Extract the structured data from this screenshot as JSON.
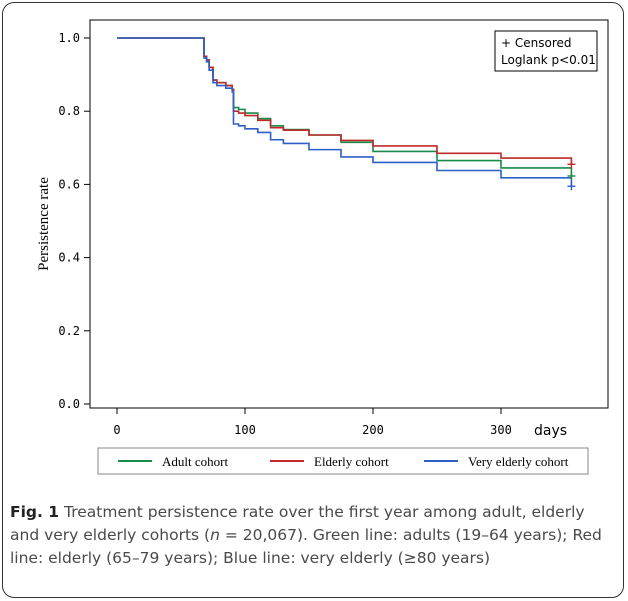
{
  "chart_data": {
    "type": "line",
    "step": true,
    "ylabel": "Persistence rate",
    "xlabel": "days",
    "xlim": [
      0,
      360
    ],
    "ylim": [
      0,
      1.0
    ],
    "x_ticks": [
      0,
      100,
      200,
      300
    ],
    "y_ticks": [
      0.0,
      0.2,
      0.4,
      0.6,
      0.8,
      1.0
    ],
    "x_tick_labels": [
      "0",
      "100",
      "200",
      "300"
    ],
    "y_tick_labels": [
      "0.0",
      "0.2",
      "0.4",
      "0.6",
      "0.8",
      "1.0"
    ],
    "annotation": [
      "+ Censored",
      "Loglank p<0.01"
    ],
    "annotation_position": "top-right",
    "grid": false,
    "legend_position": "bottom",
    "series": [
      {
        "name": "Adult cohort",
        "color": "#1a8a4a",
        "points": [
          [
            0,
            1.0
          ],
          [
            67,
            1.0
          ],
          [
            68,
            0.95
          ],
          [
            70,
            0.94
          ],
          [
            72,
            0.92
          ],
          [
            75,
            0.885
          ],
          [
            78,
            0.878
          ],
          [
            85,
            0.87
          ],
          [
            90,
            0.86
          ],
          [
            91,
            0.81
          ],
          [
            95,
            0.805
          ],
          [
            100,
            0.795
          ],
          [
            110,
            0.78
          ],
          [
            120,
            0.76
          ],
          [
            130,
            0.75
          ],
          [
            150,
            0.735
          ],
          [
            175,
            0.715
          ],
          [
            200,
            0.69
          ],
          [
            250,
            0.665
          ],
          [
            300,
            0.645
          ],
          [
            355,
            0.623
          ]
        ]
      },
      {
        "name": "Elderly cohort",
        "color": "#c0282a",
        "points": [
          [
            0,
            1.0
          ],
          [
            67,
            1.0
          ],
          [
            68,
            0.95
          ],
          [
            70,
            0.94
          ],
          [
            72,
            0.92
          ],
          [
            75,
            0.885
          ],
          [
            78,
            0.878
          ],
          [
            85,
            0.87
          ],
          [
            90,
            0.86
          ],
          [
            91,
            0.8
          ],
          [
            95,
            0.795
          ],
          [
            100,
            0.788
          ],
          [
            110,
            0.775
          ],
          [
            120,
            0.755
          ],
          [
            130,
            0.748
          ],
          [
            150,
            0.735
          ],
          [
            175,
            0.72
          ],
          [
            200,
            0.705
          ],
          [
            250,
            0.685
          ],
          [
            300,
            0.672
          ],
          [
            355,
            0.655
          ]
        ]
      },
      {
        "name": "Very elderly cohort",
        "color": "#2e5fc8",
        "points": [
          [
            0,
            1.0
          ],
          [
            67,
            1.0
          ],
          [
            68,
            0.945
          ],
          [
            70,
            0.935
          ],
          [
            72,
            0.912
          ],
          [
            75,
            0.878
          ],
          [
            78,
            0.87
          ],
          [
            85,
            0.863
          ],
          [
            90,
            0.853
          ],
          [
            91,
            0.765
          ],
          [
            95,
            0.76
          ],
          [
            100,
            0.752
          ],
          [
            110,
            0.742
          ],
          [
            120,
            0.722
          ],
          [
            130,
            0.712
          ],
          [
            150,
            0.695
          ],
          [
            175,
            0.675
          ],
          [
            200,
            0.66
          ],
          [
            250,
            0.638
          ],
          [
            300,
            0.618
          ],
          [
            355,
            0.595
          ]
        ]
      }
    ]
  },
  "caption": {
    "fig_label": "Fig. 1",
    "text_part1": " Treatment persistence rate over the first year among adult, elderly and very elderly cohorts (",
    "n_symbol": "n",
    "text_part2": " = 20,067). Green line: adults (19–64 years); Red line: elderly (65–79 years); Blue line: very elderly (≥80 years)"
  }
}
